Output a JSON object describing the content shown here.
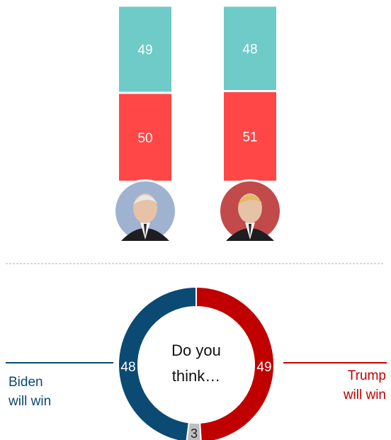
{
  "chart_data": [
    {
      "type": "bar",
      "stacked": true,
      "categories": [
        "Biden",
        "Trump"
      ],
      "series": [
        {
          "values": [
            49,
            48
          ],
          "color": "#6ecbc8"
        },
        {
          "values": [
            50,
            51
          ],
          "color": "#ff4747"
        }
      ],
      "avatars": [
        {
          "icon": "biden-portrait-icon",
          "tint": "#9fb3d1"
        },
        {
          "icon": "trump-portrait-icon",
          "tint": "#c24a4a"
        }
      ]
    },
    {
      "type": "pie",
      "donut": true,
      "center_text": [
        "Do you",
        "think…"
      ],
      "slices": [
        {
          "name": "Biden will win",
          "value": 48,
          "color": "#0b4a72"
        },
        {
          "name": "Trump will win",
          "value": 49,
          "color": "#c00000"
        },
        {
          "name": "",
          "value": 3,
          "color": "#bfbfbf"
        }
      ],
      "side_labels": {
        "left": [
          "Biden",
          "will win"
        ],
        "right": [
          "Trump",
          "will win"
        ]
      }
    }
  ]
}
